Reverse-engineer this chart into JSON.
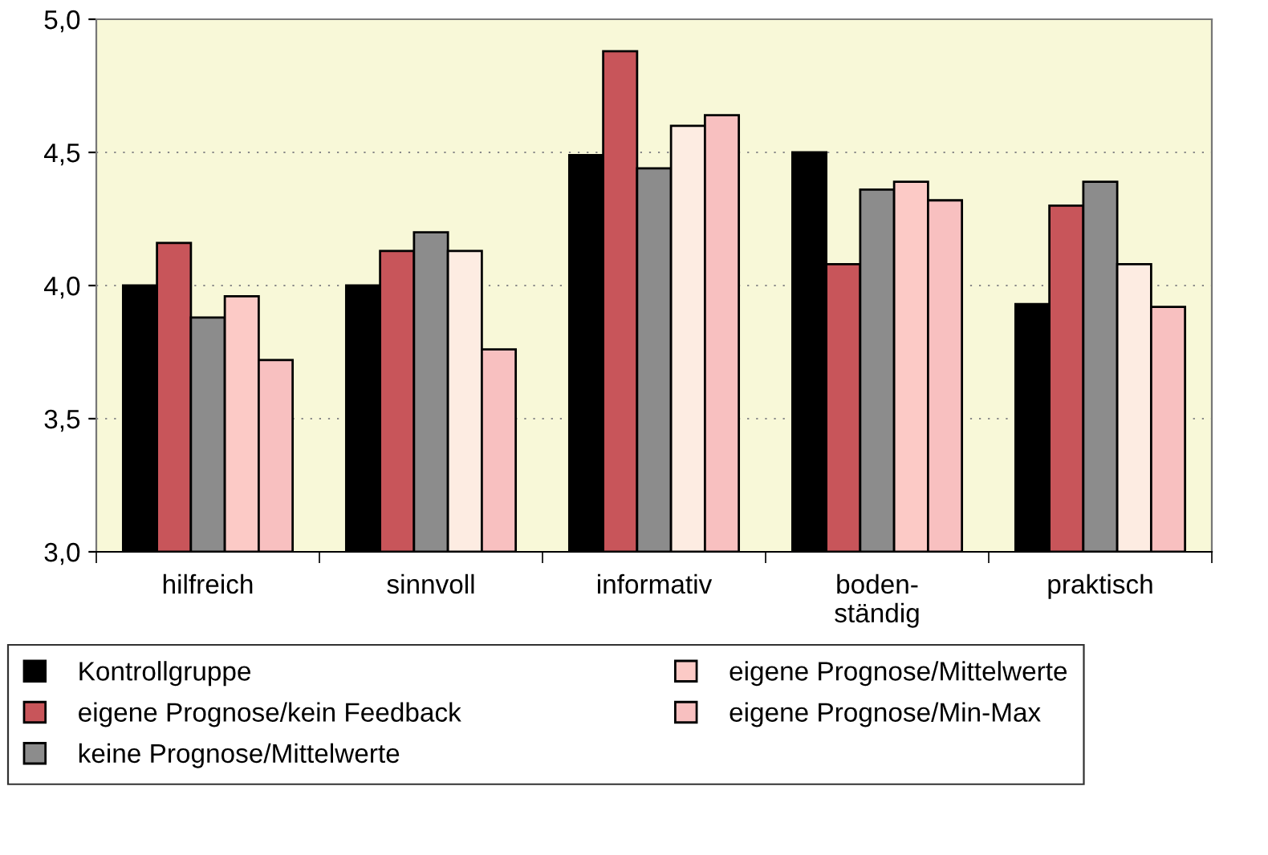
{
  "chart_data": {
    "type": "bar",
    "categories": [
      "hilfreich",
      "sinnvoll",
      "informativ",
      "boden-\nständig",
      "praktisch"
    ],
    "series": [
      {
        "name": "Kontrollgruppe",
        "color": "#000000",
        "values": [
          4.0,
          4.0,
          4.49,
          4.5,
          3.93
        ]
      },
      {
        "name": "eigene Prognose/kein Feedback",
        "color": "#c8555a",
        "values": [
          4.16,
          4.13,
          4.88,
          4.08,
          4.3
        ]
      },
      {
        "name": "keine Prognose/Mittelwerte",
        "color": "#8c8c8c",
        "values": [
          3.88,
          4.2,
          4.44,
          4.36,
          4.39
        ]
      },
      {
        "name": "eigene Prognose/Mittelwerte",
        "color": "#fccac6",
        "colors": [
          "#fccac6",
          "#fdece2",
          "#fdece2",
          "#fccac6",
          "#fdece2"
        ],
        "values": [
          3.96,
          4.13,
          4.6,
          4.39,
          4.08
        ]
      },
      {
        "name": "eigene Prognose/Min-Max",
        "color": "#f8c0c0",
        "values": [
          3.72,
          3.76,
          4.64,
          4.32,
          3.92
        ]
      }
    ],
    "ylim": [
      3.0,
      5.0
    ],
    "yticks": [
      {
        "value": 3.0,
        "label": "3,0"
      },
      {
        "value": 3.5,
        "label": "3,5"
      },
      {
        "value": 4.0,
        "label": "4,0"
      },
      {
        "value": 4.5,
        "label": "4,5"
      },
      {
        "value": 5.0,
        "label": "5,0"
      }
    ],
    "grid": "y",
    "legend": "bottom"
  }
}
